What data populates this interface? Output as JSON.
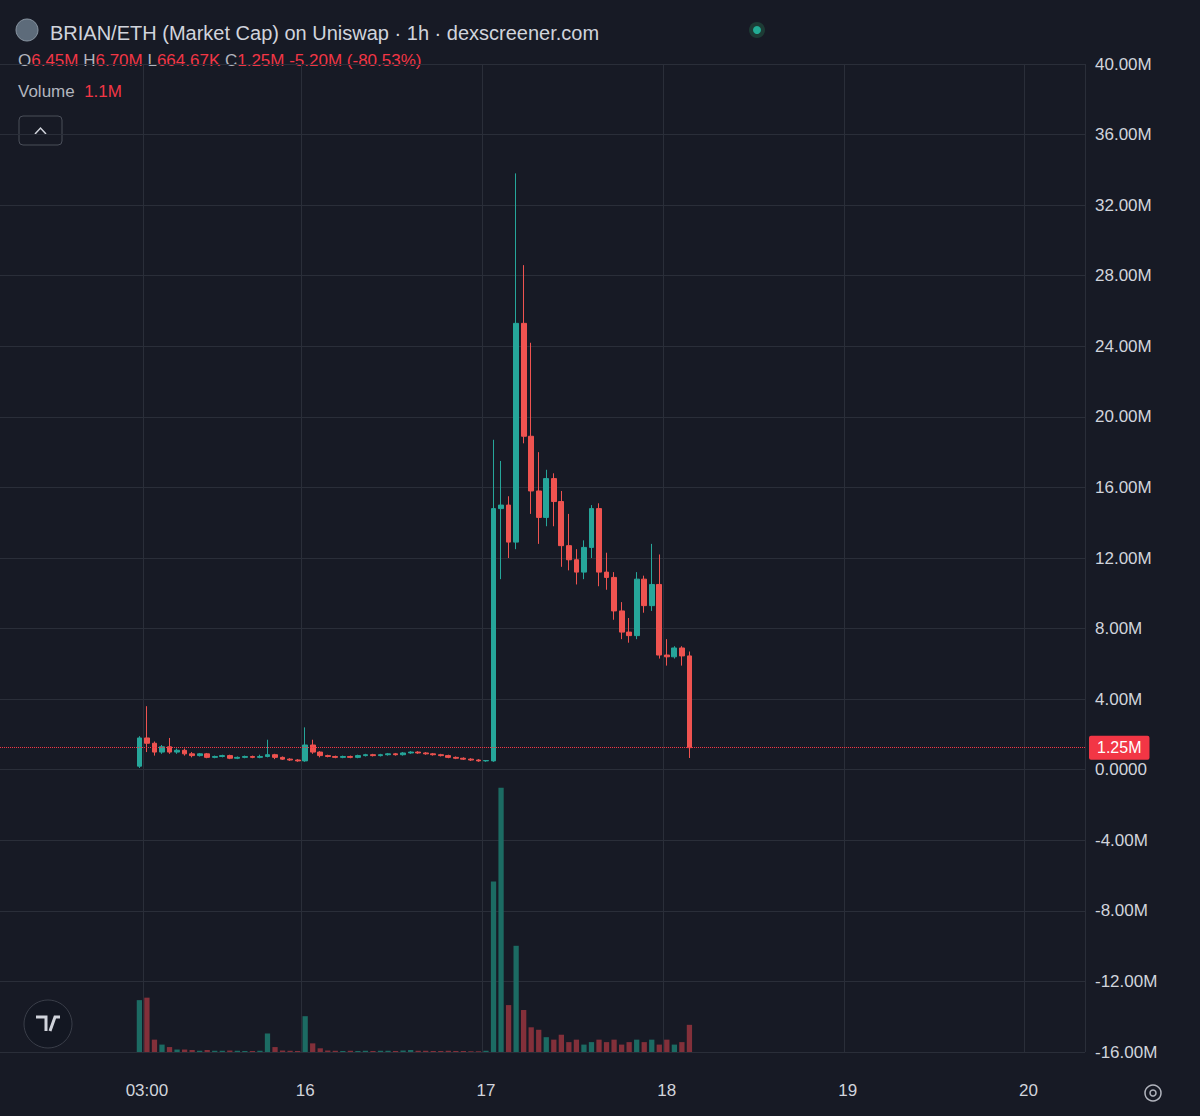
{
  "chart_data": {
    "type": "candlestick",
    "title": "BRIAN/ETH (Market Cap) on Uniswap · 1h · dexscreener.com",
    "ohlc": [
      {
        "label": "O",
        "value": "6.45M"
      },
      {
        "label": "H",
        "value": "6.70M"
      },
      {
        "label": "L",
        "value": "664.67K"
      },
      {
        "label": "C",
        "value": "1.25M"
      }
    ],
    "change": "-5.20M (-80.53%)",
    "volume_label": "1.1M",
    "last_price": {
      "value": 1.25,
      "label": "1.25M"
    },
    "grid": true,
    "categories": [
      null,
      null,
      null,
      null,
      null,
      null,
      null,
      null,
      null,
      null,
      null,
      null,
      null,
      null,
      null,
      null,
      null,
      null,
      null,
      "03:00",
      null,
      null,
      null,
      null,
      null,
      null,
      null,
      null,
      null,
      null,
      null,
      null,
      null,
      null,
      null,
      null,
      null,
      null,
      null,
      null,
      "16",
      null,
      null,
      null,
      null,
      null,
      null,
      null,
      null,
      null,
      null,
      null,
      null,
      null,
      null,
      null,
      null,
      null,
      null,
      null,
      null,
      null,
      null,
      null,
      "17",
      null,
      null,
      null,
      null,
      null,
      null,
      null,
      null,
      null,
      null,
      null,
      null,
      null,
      null,
      null,
      null,
      null,
      null,
      null,
      null,
      null,
      null,
      null,
      "18",
      null,
      null,
      null,
      null,
      null,
      null,
      null,
      null,
      null,
      null,
      null,
      null,
      null,
      null,
      null,
      null,
      null,
      null,
      null,
      null,
      null,
      null,
      null,
      "19",
      null,
      null,
      null,
      null,
      null,
      null,
      null,
      null,
      null,
      null,
      null,
      null,
      null,
      null,
      null,
      null,
      null,
      null,
      null,
      null,
      null,
      null,
      null,
      "20",
      null,
      null,
      null,
      null,
      null,
      null,
      null
    ],
    "ylim": [
      -16,
      40
    ],
    "yticks": [
      {
        "value": -16,
        "label": "-16.00M"
      },
      {
        "value": -12,
        "label": "-12.00M"
      },
      {
        "value": -8,
        "label": "-8.00M"
      },
      {
        "value": -4,
        "label": "-4.00M"
      },
      {
        "value": 0,
        "label": "0.0000"
      },
      {
        "value": 4,
        "label": "4.00M"
      },
      {
        "value": 8,
        "label": "8.00M"
      },
      {
        "value": 12,
        "label": "12.00M"
      },
      {
        "value": 16,
        "label": "16.00M"
      },
      {
        "value": 20,
        "label": "20.00M"
      },
      {
        "value": 24,
        "label": "24.00M"
      },
      {
        "value": 28,
        "label": "28.00M"
      },
      {
        "value": 32,
        "label": "32.00M"
      },
      {
        "value": 36,
        "label": "36.00M"
      },
      {
        "value": 40,
        "label": "40.00M"
      }
    ],
    "y2lim": [
      0,
      40
    ],
    "series": [
      {
        "type": "candlestick",
        "color": {
          "up": "#26a69a",
          "down": "#ef5350"
        },
        "values": [
          null,
          null,
          null,
          null,
          null,
          null,
          null,
          null,
          null,
          null,
          null,
          null,
          null,
          null,
          null,
          null,
          null,
          null,
          [
            0.2,
            1.8,
            0.1,
            1.9
          ],
          [
            1.8,
            1.5,
            1.0,
            3.6
          ],
          [
            1.5,
            1.0,
            0.8,
            1.6
          ],
          [
            1.0,
            1.3,
            0.9,
            1.4
          ],
          [
            1.3,
            1.0,
            0.9,
            1.8
          ],
          [
            1.0,
            1.1,
            0.9,
            1.2
          ],
          [
            1.1,
            0.9,
            0.8,
            1.2
          ],
          [
            0.9,
            0.8,
            0.7,
            1.0
          ],
          [
            0.8,
            0.9,
            0.75,
            0.95
          ],
          [
            0.9,
            0.7,
            0.65,
            0.95
          ],
          [
            0.7,
            0.75,
            0.65,
            0.8
          ],
          [
            0.75,
            0.8,
            0.7,
            0.85
          ],
          [
            0.8,
            0.65,
            0.6,
            0.85
          ],
          [
            0.65,
            0.7,
            0.6,
            0.75
          ],
          [
            0.7,
            0.75,
            0.65,
            0.8
          ],
          [
            0.75,
            0.7,
            0.65,
            0.8
          ],
          [
            0.7,
            0.75,
            0.65,
            0.85
          ],
          [
            0.75,
            0.85,
            0.7,
            1.7
          ],
          [
            0.85,
            0.7,
            0.6,
            0.9
          ],
          [
            0.7,
            0.6,
            0.55,
            0.75
          ],
          [
            0.6,
            0.55,
            0.5,
            0.65
          ],
          [
            0.55,
            0.5,
            0.45,
            0.6
          ],
          [
            0.5,
            1.4,
            0.45,
            2.4
          ],
          [
            1.4,
            1.0,
            0.9,
            1.7
          ],
          [
            1.0,
            0.8,
            0.7,
            1.05
          ],
          [
            0.8,
            0.75,
            0.7,
            0.85
          ],
          [
            0.75,
            0.7,
            0.65,
            0.8
          ],
          [
            0.7,
            0.75,
            0.65,
            0.8
          ],
          [
            0.75,
            0.7,
            0.65,
            0.8
          ],
          [
            0.7,
            0.8,
            0.65,
            0.85
          ],
          [
            0.8,
            0.85,
            0.75,
            0.9
          ],
          [
            0.85,
            0.8,
            0.75,
            0.9
          ],
          [
            0.8,
            0.85,
            0.75,
            0.9
          ],
          [
            0.85,
            0.9,
            0.8,
            0.95
          ],
          [
            0.9,
            0.85,
            0.8,
            0.95
          ],
          [
            0.85,
            0.95,
            0.8,
            1.0
          ],
          [
            0.95,
            1.0,
            0.9,
            1.05
          ],
          [
            1.0,
            0.95,
            0.9,
            1.05
          ],
          [
            0.95,
            0.9,
            0.85,
            1.0
          ],
          [
            0.9,
            0.85,
            0.8,
            0.95
          ],
          [
            0.85,
            0.8,
            0.75,
            0.9
          ],
          [
            0.8,
            0.7,
            0.65,
            0.85
          ],
          [
            0.7,
            0.65,
            0.6,
            0.75
          ],
          [
            0.65,
            0.6,
            0.55,
            0.7
          ],
          [
            0.6,
            0.55,
            0.5,
            0.65
          ],
          [
            0.55,
            0.5,
            0.45,
            0.6
          ],
          [
            0.5,
            0.52,
            0.45,
            0.55
          ],
          [
            0.5,
            14.8,
            0.45,
            18.7
          ],
          [
            14.8,
            15.0,
            10.8,
            17.5
          ],
          [
            15.0,
            12.9,
            12.0,
            15.5
          ],
          [
            12.9,
            25.3,
            12.5,
            33.8
          ],
          [
            25.3,
            18.9,
            18.5,
            28.6
          ],
          [
            18.9,
            15.8,
            14.5,
            24.2
          ],
          [
            15.8,
            14.3,
            12.8,
            18.0
          ],
          [
            14.3,
            16.5,
            13.8,
            17.0
          ],
          [
            16.5,
            15.2,
            13.8,
            16.8
          ],
          [
            15.2,
            12.7,
            11.5,
            15.8
          ],
          [
            12.7,
            11.9,
            11.3,
            14.5
          ],
          [
            11.9,
            11.2,
            10.5,
            12.5
          ],
          [
            11.2,
            12.6,
            10.8,
            13.0
          ],
          [
            12.6,
            14.8,
            12.0,
            15.0
          ],
          [
            14.8,
            11.2,
            10.4,
            15.1
          ],
          [
            11.2,
            10.9,
            10.2,
            12.3
          ],
          [
            10.9,
            9.0,
            8.5,
            11.2
          ],
          [
            9.0,
            7.8,
            7.4,
            9.5
          ],
          [
            7.8,
            7.6,
            7.2,
            8.6
          ],
          [
            7.6,
            10.8,
            7.4,
            11.2
          ],
          [
            10.8,
            9.3,
            8.9,
            11.0
          ],
          [
            9.3,
            10.5,
            9.0,
            12.8
          ],
          [
            10.5,
            6.5,
            6.3,
            12.2
          ],
          [
            6.5,
            6.4,
            5.9,
            7.4
          ],
          [
            6.4,
            6.9,
            6.3,
            7.0
          ],
          [
            6.9,
            6.45,
            5.9,
            7.0
          ],
          [
            6.45,
            1.25,
            0.66467,
            6.7
          ],
          null,
          null,
          null,
          null,
          null,
          null,
          null,
          null,
          null,
          null,
          null,
          null,
          null,
          null,
          null,
          null,
          null,
          null,
          null,
          null,
          null,
          null,
          null,
          null,
          null,
          null,
          null,
          null,
          null,
          null,
          null,
          null,
          null,
          null,
          null,
          null,
          null,
          null,
          null,
          null,
          null,
          null,
          null,
          null,
          null,
          null,
          null,
          null,
          null,
          null,
          null,
          null
        ]
      },
      {
        "type": "bar",
        "name": "Volume",
        "axis": "y2",
        "color": {
          "up": "#1c6b63",
          "down": "#83303a"
        },
        "values": [
          null,
          null,
          null,
          null,
          null,
          null,
          null,
          null,
          null,
          null,
          null,
          null,
          null,
          null,
          null,
          null,
          null,
          null,
          2.1,
          2.2,
          0.5,
          0.3,
          0.2,
          0.1,
          0.1,
          0.08,
          0.05,
          0.08,
          0.05,
          0.05,
          0.06,
          0.05,
          0.04,
          0.04,
          0.05,
          0.75,
          0.2,
          0.06,
          0.05,
          0.04,
          1.45,
          0.35,
          0.15,
          0.06,
          0.05,
          0.04,
          0.05,
          0.04,
          0.05,
          0.04,
          0.05,
          0.05,
          0.04,
          0.06,
          0.08,
          0.05,
          0.05,
          0.04,
          0.04,
          0.05,
          0.04,
          0.04,
          0.03,
          0.03,
          0.05,
          6.9,
          10.7,
          1.9,
          4.3,
          1.7,
          1.0,
          0.9,
          0.6,
          0.5,
          0.7,
          0.4,
          0.5,
          0.3,
          0.4,
          0.5,
          0.4,
          0.5,
          0.3,
          0.4,
          0.5,
          0.4,
          0.5,
          0.3,
          0.5,
          0.3,
          0.4,
          1.1,
          null,
          null,
          null,
          null,
          null,
          null,
          null,
          null,
          null,
          null,
          null,
          null,
          null,
          null,
          null,
          null,
          null,
          null,
          null,
          null,
          null,
          null,
          null,
          null,
          null,
          null,
          null,
          null,
          null,
          null,
          null,
          null,
          null,
          null,
          null,
          null,
          null,
          null,
          null,
          null,
          null,
          null,
          null,
          null,
          null,
          null,
          null,
          null,
          null,
          null,
          null,
          null
        ]
      }
    ]
  }
}
